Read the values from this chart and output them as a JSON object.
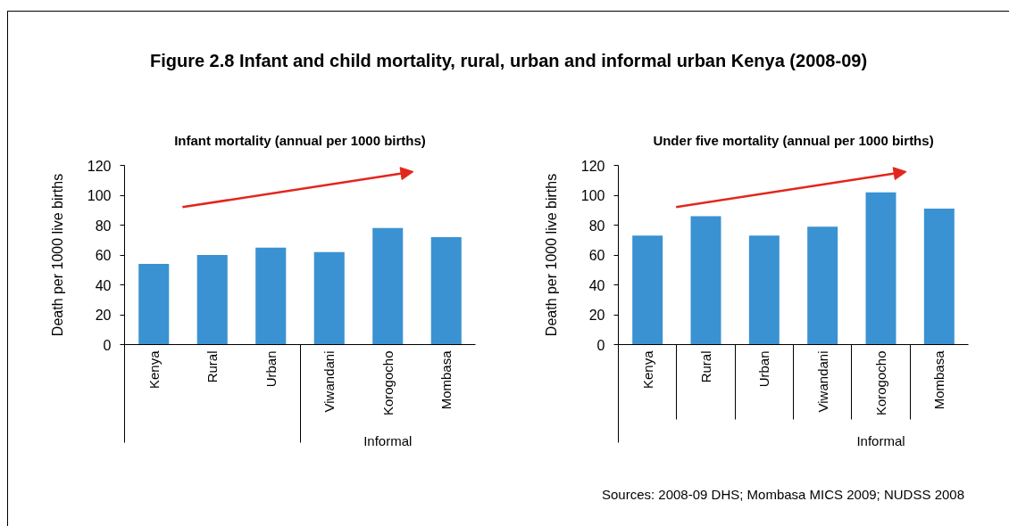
{
  "chart_data": [
    {
      "type": "bar",
      "title": "Figure 2.8 Infant and child mortality, rural, urban and informal urban Kenya (2008-09)",
      "subtitle": "Infant mortality (annual per 1000 births)",
      "ylabel": "Death per 1000 live births",
      "categories": [
        "Kenya",
        "Rural",
        "Urban",
        "Viwandani",
        "Korogocho",
        "Mombasa"
      ],
      "values": [
        54,
        60,
        65,
        62,
        78,
        72
      ],
      "color": "#3a92d2",
      "ylim": [
        0,
        120
      ],
      "yticks": [
        0,
        20,
        40,
        60,
        80,
        100,
        120
      ],
      "annotations": [
        "Informal"
      ]
    },
    {
      "type": "bar",
      "subtitle": "Under five mortality (annual per 1000 births)",
      "ylabel": "Death per 1000 live births",
      "categories": [
        "Kenya",
        "Rural",
        "Urban",
        "Viwandani",
        "Korogocho",
        "Mombasa"
      ],
      "values": [
        73,
        86,
        73,
        79,
        102,
        91
      ],
      "color": "#3a92d2",
      "ylim": [
        0,
        120
      ],
      "yticks": [
        0,
        20,
        40,
        60,
        80,
        100,
        120
      ],
      "annotations": [
        "Informal",
        "Sources: 2008-09 DHS; Mombasa MICS 2009; NUDSS 2008"
      ]
    }
  ]
}
